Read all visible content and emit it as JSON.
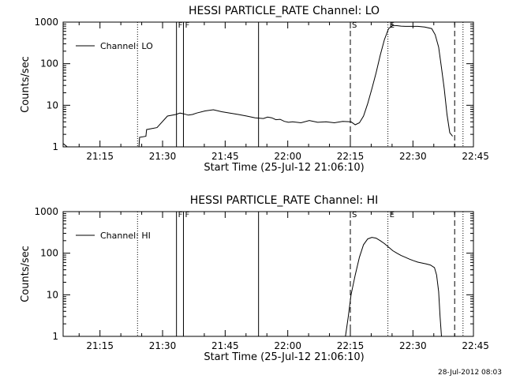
{
  "footer": {
    "timestamp": "28-Jul-2012 08:03"
  },
  "chart_data": [
    {
      "type": "line",
      "title": "HESSI PARTICLE_RATE Channel: LO",
      "xlabel": "Start Time (25-Jul-12 21:06:10)",
      "ylabel": "Counts/sec",
      "y_scale": "log",
      "ylim": [
        1,
        1000
      ],
      "xlim_seconds_after_start": [
        0,
        5900
      ],
      "x_tick_labels": [
        "21:15",
        "21:30",
        "21:45",
        "22:00",
        "22:15",
        "22:30",
        "22:45"
      ],
      "y_tick_labels": [
        "1",
        "10",
        "100",
        "1000"
      ],
      "legend": {
        "label": "Channel: LO",
        "position": "top-left"
      },
      "series": [
        {
          "name": "Channel: LO",
          "x_seconds_after_start": [
            0,
            60,
            120,
            300,
            600,
            900,
            1090,
            1100,
            1190,
            1200,
            1350,
            1500,
            1620,
            1680,
            1740,
            1800,
            1860,
            1920,
            2040,
            2160,
            2280,
            2400,
            2520,
            2640,
            2760,
            2880,
            2940,
            3000,
            3060,
            3120,
            3180,
            3240,
            3300,
            3420,
            3540,
            3660,
            3780,
            3900,
            4020,
            4140,
            4200,
            4260,
            4320,
            4380,
            4440,
            4500,
            4560,
            4620,
            4680,
            4740,
            4800,
            4860,
            4920,
            5000,
            5100,
            5200,
            5300,
            5350,
            5400,
            5440,
            5480,
            5520,
            5560,
            5600
          ],
          "y": [
            1.2,
            1,
            0.9,
            0.9,
            0.9,
            0.9,
            0.9,
            1.7,
            1.8,
            2.6,
            2.9,
            5.5,
            6.0,
            6.5,
            6.2,
            5.8,
            6.0,
            6.5,
            7.3,
            7.8,
            7.0,
            6.5,
            6.0,
            5.5,
            5.0,
            4.8,
            5.2,
            5.0,
            4.5,
            4.6,
            4.1,
            3.9,
            4.0,
            3.8,
            4.3,
            3.9,
            4.0,
            3.8,
            4.1,
            4.0,
            3.4,
            3.8,
            5.5,
            11,
            25,
            60,
            160,
            380,
            700,
            830,
            820,
            800,
            790,
            790,
            790,
            760,
            700,
            500,
            250,
            80,
            25,
            6,
            2.2,
            1.8
          ]
        }
      ],
      "vertical_markers": [
        {
          "label": "",
          "style": "dotted",
          "time": "21:24:00"
        },
        {
          "label": "F",
          "style": "solid",
          "time": "21:33:20"
        },
        {
          "label": "F",
          "style": "solid",
          "time": "21:35:00"
        },
        {
          "label": "",
          "style": "solid",
          "time": "21:53:00"
        },
        {
          "label": "S",
          "style": "dashed",
          "time": "22:15:00"
        },
        {
          "label": "E",
          "style": "dotted",
          "time": "22:24:00"
        },
        {
          "label": "",
          "style": "dashed",
          "time": "22:40:00"
        },
        {
          "label": "",
          "style": "dotted",
          "time": "22:42:00"
        }
      ]
    },
    {
      "type": "line",
      "title": "HESSI PARTICLE_RATE Channel: HI",
      "xlabel": "Start Time (25-Jul-12 21:06:10)",
      "ylabel": "Counts/sec",
      "y_scale": "log",
      "ylim": [
        1,
        1000
      ],
      "xlim_seconds_after_start": [
        0,
        5900
      ],
      "x_tick_labels": [
        "21:15",
        "21:30",
        "21:45",
        "22:00",
        "22:15",
        "22:30",
        "22:45"
      ],
      "y_tick_labels": [
        "1",
        "10",
        "100",
        "1000"
      ],
      "legend": {
        "label": "Channel: HI",
        "position": "top-left"
      },
      "series": [
        {
          "name": "Channel: HI",
          "x_seconds_after_start": [
            4060,
            4100,
            4140,
            4200,
            4260,
            4320,
            4380,
            4440,
            4500,
            4560,
            4620,
            4680,
            4740,
            4800,
            4860,
            4920,
            4980,
            5040,
            5100,
            5160,
            5220,
            5280,
            5340,
            5370,
            5400,
            5420,
            5440
          ],
          "y": [
            1,
            3,
            10,
            30,
            80,
            160,
            220,
            240,
            230,
            200,
            170,
            140,
            115,
            100,
            88,
            80,
            72,
            66,
            61,
            58,
            55,
            52,
            45,
            30,
            12,
            3,
            1
          ]
        }
      ],
      "vertical_markers": [
        {
          "label": "",
          "style": "dotted",
          "time": "21:24:00"
        },
        {
          "label": "F",
          "style": "solid",
          "time": "21:33:20"
        },
        {
          "label": "F",
          "style": "solid",
          "time": "21:35:00"
        },
        {
          "label": "",
          "style": "solid",
          "time": "21:53:00"
        },
        {
          "label": "S",
          "style": "dashed",
          "time": "22:15:00"
        },
        {
          "label": "E",
          "style": "dotted",
          "time": "22:24:00"
        },
        {
          "label": "",
          "style": "dashed",
          "time": "22:40:00"
        },
        {
          "label": "",
          "style": "dotted",
          "time": "22:42:00"
        }
      ]
    }
  ]
}
